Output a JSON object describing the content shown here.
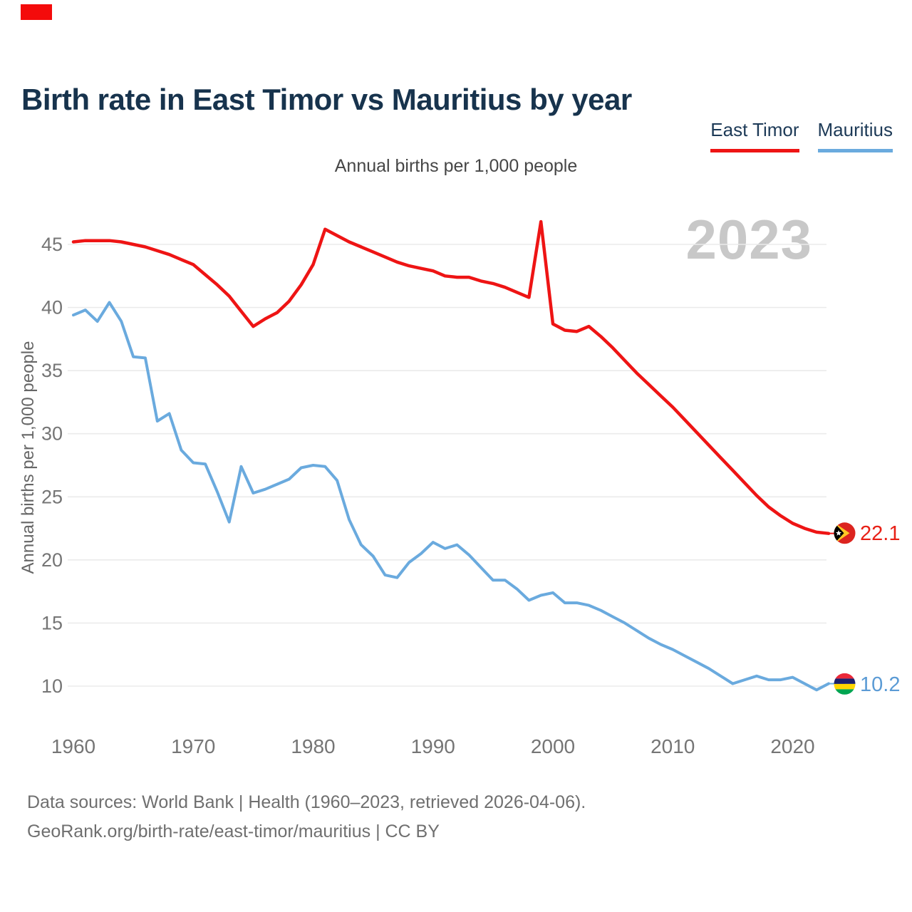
{
  "page": {
    "title": "Birth rate in East Timor vs Mauritius by year",
    "subtitle": "Annual births per 1,000 people",
    "watermark": "2023",
    "footer_line1": "Data sources: World Bank | Health (1960–2023, retrieved 2026-04-06).",
    "footer_line2": "GeoRank.org/birth-rate/east-timor/mauritius | CC BY"
  },
  "legend": {
    "items": [
      {
        "label": "East Timor",
        "color": "#ee1414"
      },
      {
        "label": "Mauritius",
        "color": "#6aaade"
      }
    ]
  },
  "chart_data": {
    "type": "line",
    "title": "Annual births per 1,000 people",
    "xlabel": "",
    "ylabel": "Annual births per 1,000 people",
    "grid": "horizontal",
    "legend_position": "top-right",
    "ylim": [
      8.5,
      47.5
    ],
    "y_ticks": [
      45,
      40,
      35,
      30,
      25,
      20,
      15,
      10
    ],
    "x_ticks": [
      1960,
      1970,
      1980,
      1990,
      2000,
      2010,
      2020
    ],
    "x": [
      1960,
      1961,
      1962,
      1963,
      1964,
      1965,
      1966,
      1967,
      1968,
      1969,
      1970,
      1971,
      1972,
      1973,
      1974,
      1975,
      1976,
      1977,
      1978,
      1979,
      1980,
      1981,
      1982,
      1983,
      1984,
      1985,
      1986,
      1987,
      1988,
      1989,
      1990,
      1991,
      1992,
      1993,
      1994,
      1995,
      1996,
      1997,
      1998,
      1999,
      2000,
      2001,
      2002,
      2003,
      2004,
      2005,
      2006,
      2007,
      2008,
      2009,
      2010,
      2011,
      2012,
      2013,
      2014,
      2015,
      2016,
      2017,
      2018,
      2019,
      2020,
      2021,
      2022,
      2023
    ],
    "series": [
      {
        "name": "East Timor",
        "color": "#ee1414",
        "end_label": "22.1",
        "flag": "east-timor",
        "values": [
          45.2,
          45.3,
          45.3,
          45.3,
          45.2,
          45.0,
          44.8,
          44.5,
          44.2,
          43.8,
          43.4,
          42.6,
          41.8,
          40.9,
          39.7,
          38.5,
          39.1,
          39.6,
          40.5,
          41.8,
          43.4,
          46.2,
          45.7,
          45.2,
          44.8,
          44.4,
          44.0,
          43.6,
          43.3,
          43.1,
          42.9,
          42.5,
          42.4,
          42.4,
          42.1,
          41.9,
          41.6,
          41.2,
          40.8,
          46.8,
          38.7,
          38.2,
          38.1,
          38.5,
          37.7,
          36.8,
          35.8,
          34.8,
          33.9,
          33.0,
          32.1,
          31.1,
          30.1,
          29.1,
          28.1,
          27.1,
          26.1,
          25.1,
          24.2,
          23.5,
          22.9,
          22.5,
          22.2,
          22.1
        ]
      },
      {
        "name": "Mauritius",
        "color": "#6aaade",
        "end_label": "10.2",
        "flag": "mauritius",
        "values": [
          39.4,
          39.8,
          38.9,
          40.4,
          38.9,
          36.1,
          36.0,
          31.0,
          31.6,
          28.7,
          27.7,
          27.6,
          25.4,
          23.0,
          27.4,
          25.3,
          25.6,
          26.0,
          26.4,
          27.3,
          27.5,
          27.4,
          26.3,
          23.2,
          21.2,
          20.3,
          18.8,
          18.6,
          19.8,
          20.5,
          21.4,
          20.9,
          21.2,
          20.4,
          19.4,
          18.4,
          18.4,
          17.7,
          16.8,
          17.2,
          17.4,
          16.6,
          16.6,
          16.4,
          16.0,
          15.5,
          15.0,
          14.4,
          13.8,
          13.3,
          12.9,
          12.4,
          11.9,
          11.4,
          10.8,
          10.2,
          10.5,
          10.8,
          10.5,
          10.5,
          10.7,
          10.2,
          9.7,
          10.2
        ]
      }
    ]
  }
}
